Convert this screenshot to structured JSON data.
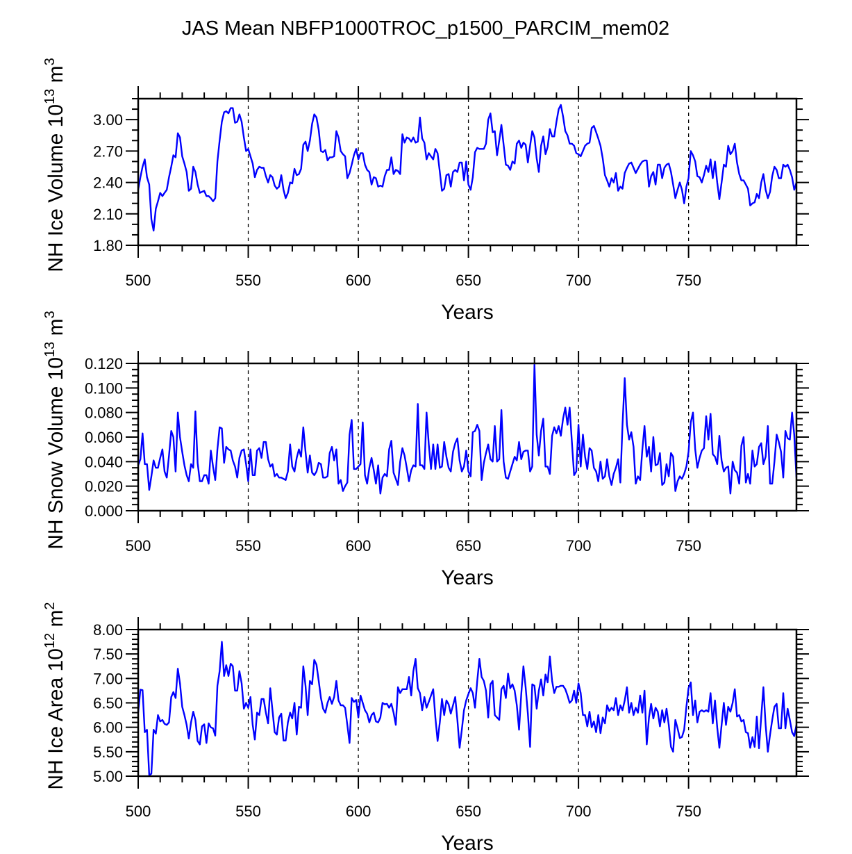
{
  "title": "JAS Mean NBFP1000TROC_p1500_PARCIM_mem02",
  "chart_data": [
    {
      "type": "line",
      "title": "",
      "xlabel": "Years",
      "ylabel": {
        "text": "NH Ice Volume 10",
        "exp": "13",
        "unit": " m",
        "unit_exp": "3"
      },
      "xlim": [
        500,
        799
      ],
      "ylim": [
        1.8,
        3.2
      ],
      "xticks": [
        500,
        550,
        600,
        650,
        700,
        750
      ],
      "xtick_labels": [
        "500",
        "550",
        "600",
        "650",
        "700",
        "750"
      ],
      "yticks": [
        1.8,
        2.1,
        2.4,
        2.7,
        3.0
      ],
      "ytick_labels": [
        "1.80",
        "2.10",
        "2.40",
        "2.70",
        "3.00"
      ],
      "yminor_step": 0.1,
      "reference_lines_x": [
        550,
        600,
        650,
        700,
        750
      ],
      "x_start": 500,
      "series": [
        {
          "name": "NH Ice Volume",
          "color": "#0000ff",
          "values": [
            2.33,
            2.45,
            2.55,
            2.62,
            2.45,
            2.38,
            2.05,
            1.94,
            2.15,
            2.22,
            2.3,
            2.27,
            2.3,
            2.33,
            2.45,
            2.55,
            2.66,
            2.64,
            2.87,
            2.83,
            2.65,
            2.58,
            2.5,
            2.32,
            2.34,
            2.55,
            2.5,
            2.38,
            2.3,
            2.31,
            2.32,
            2.27,
            2.27,
            2.25,
            2.22,
            2.25,
            2.6,
            2.8,
            2.98,
            3.07,
            3.08,
            3.06,
            3.11,
            3.11,
            2.97,
            2.98,
            3.05,
            2.98,
            2.83,
            2.7,
            2.72,
            2.65,
            2.58,
            2.45,
            2.52,
            2.55,
            2.54,
            2.54,
            2.46,
            2.4,
            2.47,
            2.45,
            2.37,
            2.34,
            2.36,
            2.47,
            2.33,
            2.25,
            2.3,
            2.4,
            2.39,
            2.53,
            2.47,
            2.48,
            2.53,
            2.76,
            2.79,
            2.7,
            2.8,
            2.96,
            3.05,
            3.02,
            2.9,
            2.7,
            2.69,
            2.71,
            2.61,
            2.64,
            2.64,
            2.65,
            2.89,
            2.83,
            2.7,
            2.67,
            2.65,
            2.44,
            2.49,
            2.57,
            2.66,
            2.72,
            2.62,
            2.68,
            2.68,
            2.57,
            2.52,
            2.5,
            2.38,
            2.45,
            2.44,
            2.36,
            2.37,
            2.36,
            2.46,
            2.52,
            2.52,
            2.64,
            2.48,
            2.52,
            2.51,
            2.48,
            2.86,
            2.78,
            2.83,
            2.82,
            2.79,
            2.83,
            2.78,
            2.79,
            3.02,
            2.82,
            2.78,
            2.62,
            2.68,
            2.65,
            2.62,
            2.72,
            2.68,
            2.5,
            2.32,
            2.34,
            2.47,
            2.48,
            2.36,
            2.5,
            2.52,
            2.5,
            2.59,
            2.59,
            2.42,
            2.6,
            2.38,
            2.33,
            2.45,
            2.69,
            2.73,
            2.72,
            2.72,
            2.72,
            2.77,
            3.0,
            3.06,
            2.88,
            2.89,
            2.66,
            2.8,
            2.95,
            2.76,
            2.57,
            2.56,
            2.52,
            2.6,
            2.58,
            2.77,
            2.8,
            2.73,
            2.78,
            2.76,
            2.59,
            2.75,
            2.89,
            2.83,
            2.63,
            2.5,
            2.75,
            2.84,
            2.67,
            2.74,
            2.91,
            2.84,
            2.84,
            2.98,
            3.1,
            3.14,
            3.03,
            2.89,
            2.85,
            2.77,
            2.77,
            2.75,
            2.68,
            2.67,
            2.65,
            2.7,
            2.75,
            2.77,
            2.78,
            2.92,
            2.94,
            2.88,
            2.82,
            2.75,
            2.63,
            2.47,
            2.42,
            2.36,
            2.44,
            2.4,
            2.49,
            2.32,
            2.36,
            2.34,
            2.49,
            2.54,
            2.58,
            2.59,
            2.54,
            2.49,
            2.53,
            2.57,
            2.6,
            2.61,
            2.61,
            2.36,
            2.46,
            2.5,
            2.38,
            2.57,
            2.57,
            2.44,
            2.54,
            2.57,
            2.58,
            2.5,
            2.38,
            2.25,
            2.33,
            2.4,
            2.33,
            2.2,
            2.36,
            2.44,
            2.7,
            2.66,
            2.6,
            2.46,
            2.45,
            2.4,
            2.47,
            2.56,
            2.5,
            2.62,
            2.44,
            2.6,
            2.4,
            2.24,
            2.4,
            2.57,
            2.55,
            2.75,
            2.67,
            2.7,
            2.77,
            2.59,
            2.48,
            2.42,
            2.42,
            2.38,
            2.34,
            2.18,
            2.2,
            2.21,
            2.29,
            2.25,
            2.4,
            2.48,
            2.33,
            2.25,
            2.31,
            2.46,
            2.55,
            2.52,
            2.44,
            2.44,
            2.57,
            2.55,
            2.57,
            2.52,
            2.45,
            2.33,
            2.4
          ]
        }
      ]
    },
    {
      "type": "line",
      "title": "",
      "xlabel": "Years",
      "ylabel": {
        "text": "NH Snow Volume 10",
        "exp": "13",
        "unit": " m",
        "unit_exp": "3"
      },
      "xlim": [
        500,
        799
      ],
      "ylim": [
        0,
        0.12
      ],
      "xticks": [
        500,
        550,
        600,
        650,
        700,
        750
      ],
      "xtick_labels": [
        "500",
        "550",
        "600",
        "650",
        "700",
        "750"
      ],
      "yticks": [
        0,
        0.02,
        0.04,
        0.06,
        0.08,
        0.1,
        0.12
      ],
      "ytick_labels": [
        "0.000",
        "0.020",
        "0.040",
        "0.060",
        "0.080",
        "0.100",
        "0.120"
      ],
      "yminor_step": 0.005,
      "reference_lines_x": [
        550,
        600,
        650,
        700,
        750
      ],
      "x_start": 500,
      "series": [
        {
          "name": "NH Snow Volume",
          "color": "#0000ff",
          "values": [
            0.037,
            0.042,
            0.063,
            0.038,
            0.038,
            0.017,
            0.028,
            0.041,
            0.035,
            0.035,
            0.043,
            0.05,
            0.032,
            0.027,
            0.045,
            0.065,
            0.06,
            0.032,
            0.08,
            0.06,
            0.048,
            0.037,
            0.029,
            0.024,
            0.038,
            0.035,
            0.081,
            0.039,
            0.024,
            0.024,
            0.029,
            0.029,
            0.022,
            0.049,
            0.036,
            0.025,
            0.05,
            0.068,
            0.067,
            0.039,
            0.052,
            0.05,
            0.049,
            0.041,
            0.036,
            0.027,
            0.043,
            0.049,
            0.05,
            0.038,
            0.024,
            0.05,
            0.029,
            0.029,
            0.049,
            0.051,
            0.043,
            0.056,
            0.056,
            0.042,
            0.036,
            0.038,
            0.028,
            0.03,
            0.027,
            0.027,
            0.026,
            0.025,
            0.032,
            0.054,
            0.036,
            0.032,
            0.043,
            0.05,
            0.044,
            0.068,
            0.048,
            0.031,
            0.045,
            0.031,
            0.029,
            0.032,
            0.039,
            0.038,
            0.027,
            0.027,
            0.028,
            0.047,
            0.052,
            0.041,
            0.05,
            0.022,
            0.025,
            0.016,
            0.02,
            0.023,
            0.062,
            0.074,
            0.034,
            0.034,
            0.036,
            0.038,
            0.072,
            0.029,
            0.022,
            0.035,
            0.043,
            0.033,
            0.022,
            0.037,
            0.014,
            0.027,
            0.03,
            0.028,
            0.05,
            0.057,
            0.031,
            0.026,
            0.021,
            0.04,
            0.051,
            0.045,
            0.035,
            0.024,
            0.033,
            0.037,
            0.036,
            0.087,
            0.037,
            0.037,
            0.034,
            0.08,
            0.054,
            0.034,
            0.054,
            0.034,
            0.054,
            0.035,
            0.036,
            0.056,
            0.044,
            0.035,
            0.032,
            0.048,
            0.055,
            0.059,
            0.041,
            0.032,
            0.036,
            0.049,
            0.032,
            0.028,
            0.064,
            0.065,
            0.07,
            0.065,
            0.025,
            0.039,
            0.047,
            0.054,
            0.042,
            0.04,
            0.069,
            0.04,
            0.042,
            0.082,
            0.04,
            0.027,
            0.026,
            0.032,
            0.038,
            0.044,
            0.041,
            0.056,
            0.042,
            0.048,
            0.049,
            0.049,
            0.032,
            0.036,
            0.119,
            0.062,
            0.045,
            0.065,
            0.075,
            0.036,
            0.036,
            0.03,
            0.061,
            0.068,
            0.063,
            0.069,
            0.061,
            0.075,
            0.084,
            0.07,
            0.084,
            0.056,
            0.029,
            0.032,
            0.07,
            0.036,
            0.062,
            0.044,
            0.034,
            0.051,
            0.049,
            0.035,
            0.032,
            0.024,
            0.04,
            0.026,
            0.028,
            0.042,
            0.028,
            0.021,
            0.03,
            0.035,
            0.042,
            0.023,
            0.07,
            0.108,
            0.07,
            0.058,
            0.064,
            0.052,
            0.022,
            0.028,
            0.025,
            0.05,
            0.069,
            0.044,
            0.052,
            0.032,
            0.06,
            0.037,
            0.038,
            0.047,
            0.021,
            0.023,
            0.038,
            0.028,
            0.047,
            0.044,
            0.016,
            0.024,
            0.028,
            0.026,
            0.03,
            0.036,
            0.048,
            0.072,
            0.08,
            0.05,
            0.035,
            0.043,
            0.049,
            0.051,
            0.077,
            0.058,
            0.079,
            0.046,
            0.044,
            0.038,
            0.061,
            0.041,
            0.032,
            0.035,
            0.036,
            0.014,
            0.04,
            0.033,
            0.031,
            0.022,
            0.053,
            0.06,
            0.023,
            0.03,
            0.022,
            0.049,
            0.036,
            0.038,
            0.052,
            0.055,
            0.038,
            0.044,
            0.069,
            0.022,
            0.022,
            0.04,
            0.062,
            0.056,
            0.048,
            0.027,
            0.065,
            0.059,
            0.058,
            0.08,
            0.062,
            0.027
          ]
        }
      ]
    },
    {
      "type": "line",
      "title": "",
      "xlabel": "Years",
      "ylabel": {
        "text": "NH Ice Area 10",
        "exp": "12",
        "unit": " m",
        "unit_exp": "2"
      },
      "xlim": [
        500,
        799
      ],
      "ylim": [
        5,
        8
      ],
      "xticks": [
        500,
        550,
        600,
        650,
        700,
        750
      ],
      "xtick_labels": [
        "500",
        "550",
        "600",
        "650",
        "700",
        "750"
      ],
      "yticks": [
        5,
        5.5,
        6,
        6.5,
        7,
        7.5,
        8
      ],
      "ytick_labels": [
        "5.00",
        "5.50",
        "6.00",
        "6.50",
        "7.00",
        "7.50",
        "8.00"
      ],
      "yminor_step": 0.1,
      "reference_lines_x": [
        550,
        600,
        650,
        700,
        750
      ],
      "x_start": 500,
      "series": [
        {
          "name": "NH Ice Area",
          "color": "#0000ff",
          "values": [
            6.3,
            6.77,
            6.76,
            5.9,
            5.95,
            5.02,
            5.05,
            5.95,
            5.87,
            6.25,
            6.12,
            6.15,
            6.07,
            6.05,
            6.1,
            6.62,
            6.72,
            6.6,
            7.2,
            6.9,
            6.42,
            6.25,
            6.05,
            5.77,
            6.1,
            6.32,
            6.15,
            5.72,
            5.65,
            6.02,
            6.06,
            5.68,
            6.08,
            6.0,
            5.98,
            5.83,
            6.85,
            7.15,
            7.75,
            7.05,
            7.27,
            7.05,
            7.3,
            7.25,
            6.75,
            6.75,
            7.15,
            6.9,
            6.38,
            6.5,
            6.4,
            6.62,
            6.05,
            5.75,
            6.3,
            6.25,
            6.58,
            6.58,
            6.3,
            6.08,
            6.8,
            6.35,
            5.9,
            5.85,
            6.2,
            6.28,
            5.73,
            5.73,
            6.1,
            6.3,
            6.18,
            6.5,
            5.85,
            6.42,
            6.4,
            7.25,
            6.85,
            6.25,
            6.95,
            6.88,
            7.38,
            7.28,
            6.95,
            6.6,
            6.38,
            6.3,
            6.5,
            6.62,
            6.48,
            6.62,
            6.95,
            6.55,
            6.45,
            6.45,
            6.4,
            6.05,
            5.68,
            6.6,
            6.52,
            6.56,
            6.2,
            6.65,
            6.5,
            6.35,
            6.28,
            6.1,
            6.25,
            6.3,
            6.12,
            6.1,
            6.2,
            6.5,
            6.47,
            6.48,
            6.4,
            6.48,
            6.3,
            6.05,
            6.82,
            6.7,
            6.78,
            6.78,
            6.78,
            7.03,
            6.65,
            7.15,
            7.4,
            6.8,
            6.7,
            6.35,
            6.62,
            6.4,
            6.52,
            6.65,
            6.78,
            6.2,
            5.72,
            6.1,
            6.58,
            6.25,
            6.55,
            6.47,
            6.28,
            6.45,
            6.62,
            6.15,
            5.58,
            5.95,
            6.35,
            6.55,
            6.68,
            6.8,
            6.7,
            6.4,
            6.95,
            7.4,
            7.03,
            6.95,
            6.75,
            6.2,
            6.88,
            6.95,
            6.25,
            6.2,
            6.15,
            6.78,
            6.85,
            6.6,
            7.1,
            6.8,
            6.88,
            6.75,
            6.45,
            5.95,
            6.68,
            7.25,
            6.82,
            6.28,
            5.6,
            6.88,
            6.85,
            6.38,
            6.75,
            6.98,
            6.65,
            7.08,
            6.92,
            7.45,
            6.95,
            6.7,
            6.83,
            6.83,
            6.85,
            6.85,
            6.78,
            6.65,
            6.5,
            6.55,
            6.75,
            6.5,
            6.9,
            6.7,
            6.25,
            6.25,
            6.02,
            6.32,
            6.0,
            6.12,
            5.9,
            6.25,
            5.88,
            6.2,
            6.08,
            6.45,
            6.33,
            6.4,
            6.35,
            6.6,
            6.25,
            6.45,
            6.35,
            6.55,
            6.82,
            6.3,
            6.5,
            6.25,
            6.4,
            6.3,
            6.65,
            6.3,
            6.75,
            5.65,
            6.2,
            6.48,
            6.18,
            6.4,
            6.32,
            6.02,
            6.35,
            6.1,
            6.38,
            6.05,
            5.6,
            5.5,
            6.15,
            5.98,
            5.78,
            5.8,
            5.95,
            6.42,
            6.8,
            6.92,
            6.25,
            6.55,
            6.1,
            6.32,
            6.35,
            6.32,
            6.35,
            6.32,
            6.7,
            6.08,
            6.55,
            6.0,
            5.58,
            6.05,
            6.5,
            6.05,
            6.42,
            6.32,
            6.5,
            6.78,
            6.22,
            6.25,
            6.12,
            6.15,
            5.9,
            5.88,
            5.58,
            5.8,
            5.6,
            6.22,
            5.57,
            6.22,
            6.82,
            6.05,
            5.5,
            5.85,
            6.15,
            6.42,
            6.48,
            5.98,
            5.98,
            6.7,
            5.98,
            6.38,
            6.15,
            5.9,
            5.82,
            6.05
          ]
        }
      ]
    }
  ]
}
